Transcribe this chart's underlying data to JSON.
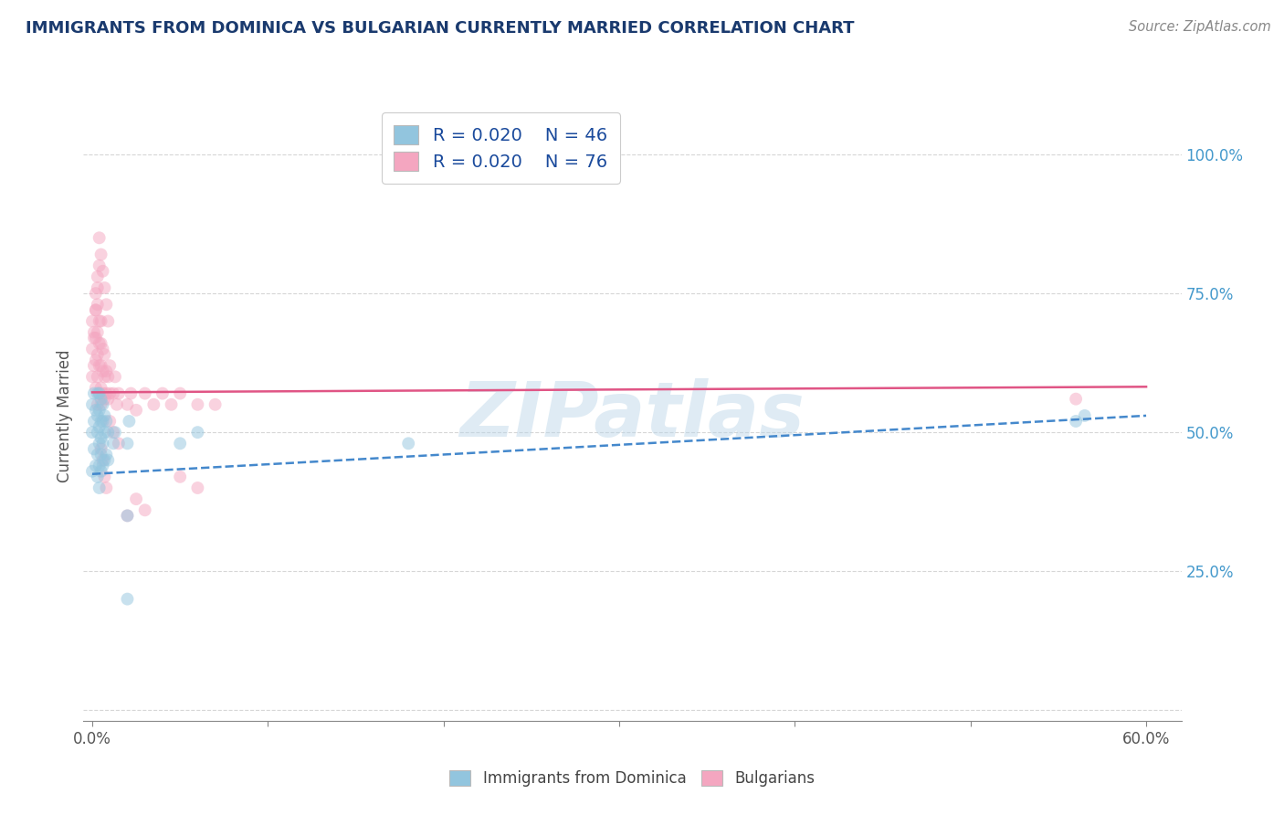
{
  "title": "IMMIGRANTS FROM DOMINICA VS BULGARIAN CURRENTLY MARRIED CORRELATION CHART",
  "source_text": "Source: ZipAtlas.com",
  "ylabel": "Currently Married",
  "xlim": [
    -0.005,
    0.62
  ],
  "ylim": [
    -0.02,
    1.08
  ],
  "watermark": "ZIPatlas",
  "legend_label1": "Immigrants from Dominica",
  "legend_label2": "Bulgarians",
  "blue_color": "#92c5de",
  "pink_color": "#f4a6c0",
  "blue_line_color": "#4488cc",
  "pink_line_color": "#e05585",
  "title_color": "#1a3a6e",
  "source_color": "#888888",
  "legend_text_color": "#1a4a9c",
  "dot_alpha": 0.5,
  "dot_size": 100,
  "grid_color": "#cccccc",
  "background_color": "#ffffff",
  "yticks_right": [
    0.0,
    0.25,
    0.5,
    0.75,
    1.0
  ],
  "yticklabels_right": [
    "",
    "25.0%",
    "50.0%",
    "75.0%",
    "100.0%"
  ],
  "dominica_x": [
    0.0,
    0.0,
    0.0,
    0.001,
    0.001,
    0.001,
    0.002,
    0.002,
    0.003,
    0.003,
    0.003,
    0.003,
    0.003,
    0.004,
    0.004,
    0.004,
    0.004,
    0.004,
    0.004,
    0.005,
    0.005,
    0.005,
    0.005,
    0.005,
    0.006,
    0.006,
    0.006,
    0.006,
    0.007,
    0.007,
    0.007,
    0.008,
    0.008,
    0.009,
    0.009,
    0.012,
    0.013,
    0.02,
    0.021,
    0.56,
    0.565,
    0.05,
    0.06,
    0.02,
    0.18,
    0.02
  ],
  "dominica_y": [
    0.43,
    0.5,
    0.55,
    0.47,
    0.52,
    0.57,
    0.44,
    0.54,
    0.42,
    0.46,
    0.5,
    0.53,
    0.57,
    0.4,
    0.44,
    0.48,
    0.51,
    0.54,
    0.57,
    0.43,
    0.46,
    0.49,
    0.52,
    0.56,
    0.44,
    0.48,
    0.52,
    0.55,
    0.45,
    0.5,
    0.53,
    0.46,
    0.52,
    0.45,
    0.5,
    0.48,
    0.5,
    0.48,
    0.52,
    0.52,
    0.53,
    0.48,
    0.5,
    0.35,
    0.48,
    0.2
  ],
  "bulgarian_x": [
    0.0,
    0.0,
    0.0,
    0.001,
    0.001,
    0.002,
    0.002,
    0.002,
    0.002,
    0.003,
    0.003,
    0.003,
    0.003,
    0.003,
    0.004,
    0.004,
    0.004,
    0.004,
    0.005,
    0.005,
    0.005,
    0.005,
    0.005,
    0.006,
    0.006,
    0.006,
    0.007,
    0.007,
    0.007,
    0.008,
    0.008,
    0.009,
    0.009,
    0.01,
    0.01,
    0.012,
    0.013,
    0.014,
    0.015,
    0.02,
    0.022,
    0.025,
    0.03,
    0.035,
    0.04,
    0.045,
    0.05,
    0.06,
    0.07,
    0.56,
    0.002,
    0.003,
    0.004,
    0.001,
    0.002,
    0.003,
    0.01,
    0.012,
    0.015,
    0.005,
    0.006,
    0.007,
    0.008,
    0.05,
    0.06,
    0.02,
    0.025,
    0.03,
    0.004,
    0.005,
    0.006,
    0.007,
    0.008,
    0.009
  ],
  "bulgarian_y": [
    0.6,
    0.65,
    0.7,
    0.62,
    0.67,
    0.58,
    0.63,
    0.67,
    0.72,
    0.55,
    0.6,
    0.64,
    0.68,
    0.73,
    0.57,
    0.62,
    0.66,
    0.7,
    0.55,
    0.58,
    0.62,
    0.66,
    0.7,
    0.57,
    0.61,
    0.65,
    0.56,
    0.6,
    0.64,
    0.57,
    0.61,
    0.56,
    0.6,
    0.57,
    0.62,
    0.57,
    0.6,
    0.55,
    0.57,
    0.55,
    0.57,
    0.54,
    0.57,
    0.55,
    0.57,
    0.55,
    0.57,
    0.55,
    0.55,
    0.56,
    0.75,
    0.78,
    0.8,
    0.68,
    0.72,
    0.76,
    0.52,
    0.5,
    0.48,
    0.47,
    0.45,
    0.42,
    0.4,
    0.42,
    0.4,
    0.35,
    0.38,
    0.36,
    0.85,
    0.82,
    0.79,
    0.76,
    0.73,
    0.7
  ]
}
